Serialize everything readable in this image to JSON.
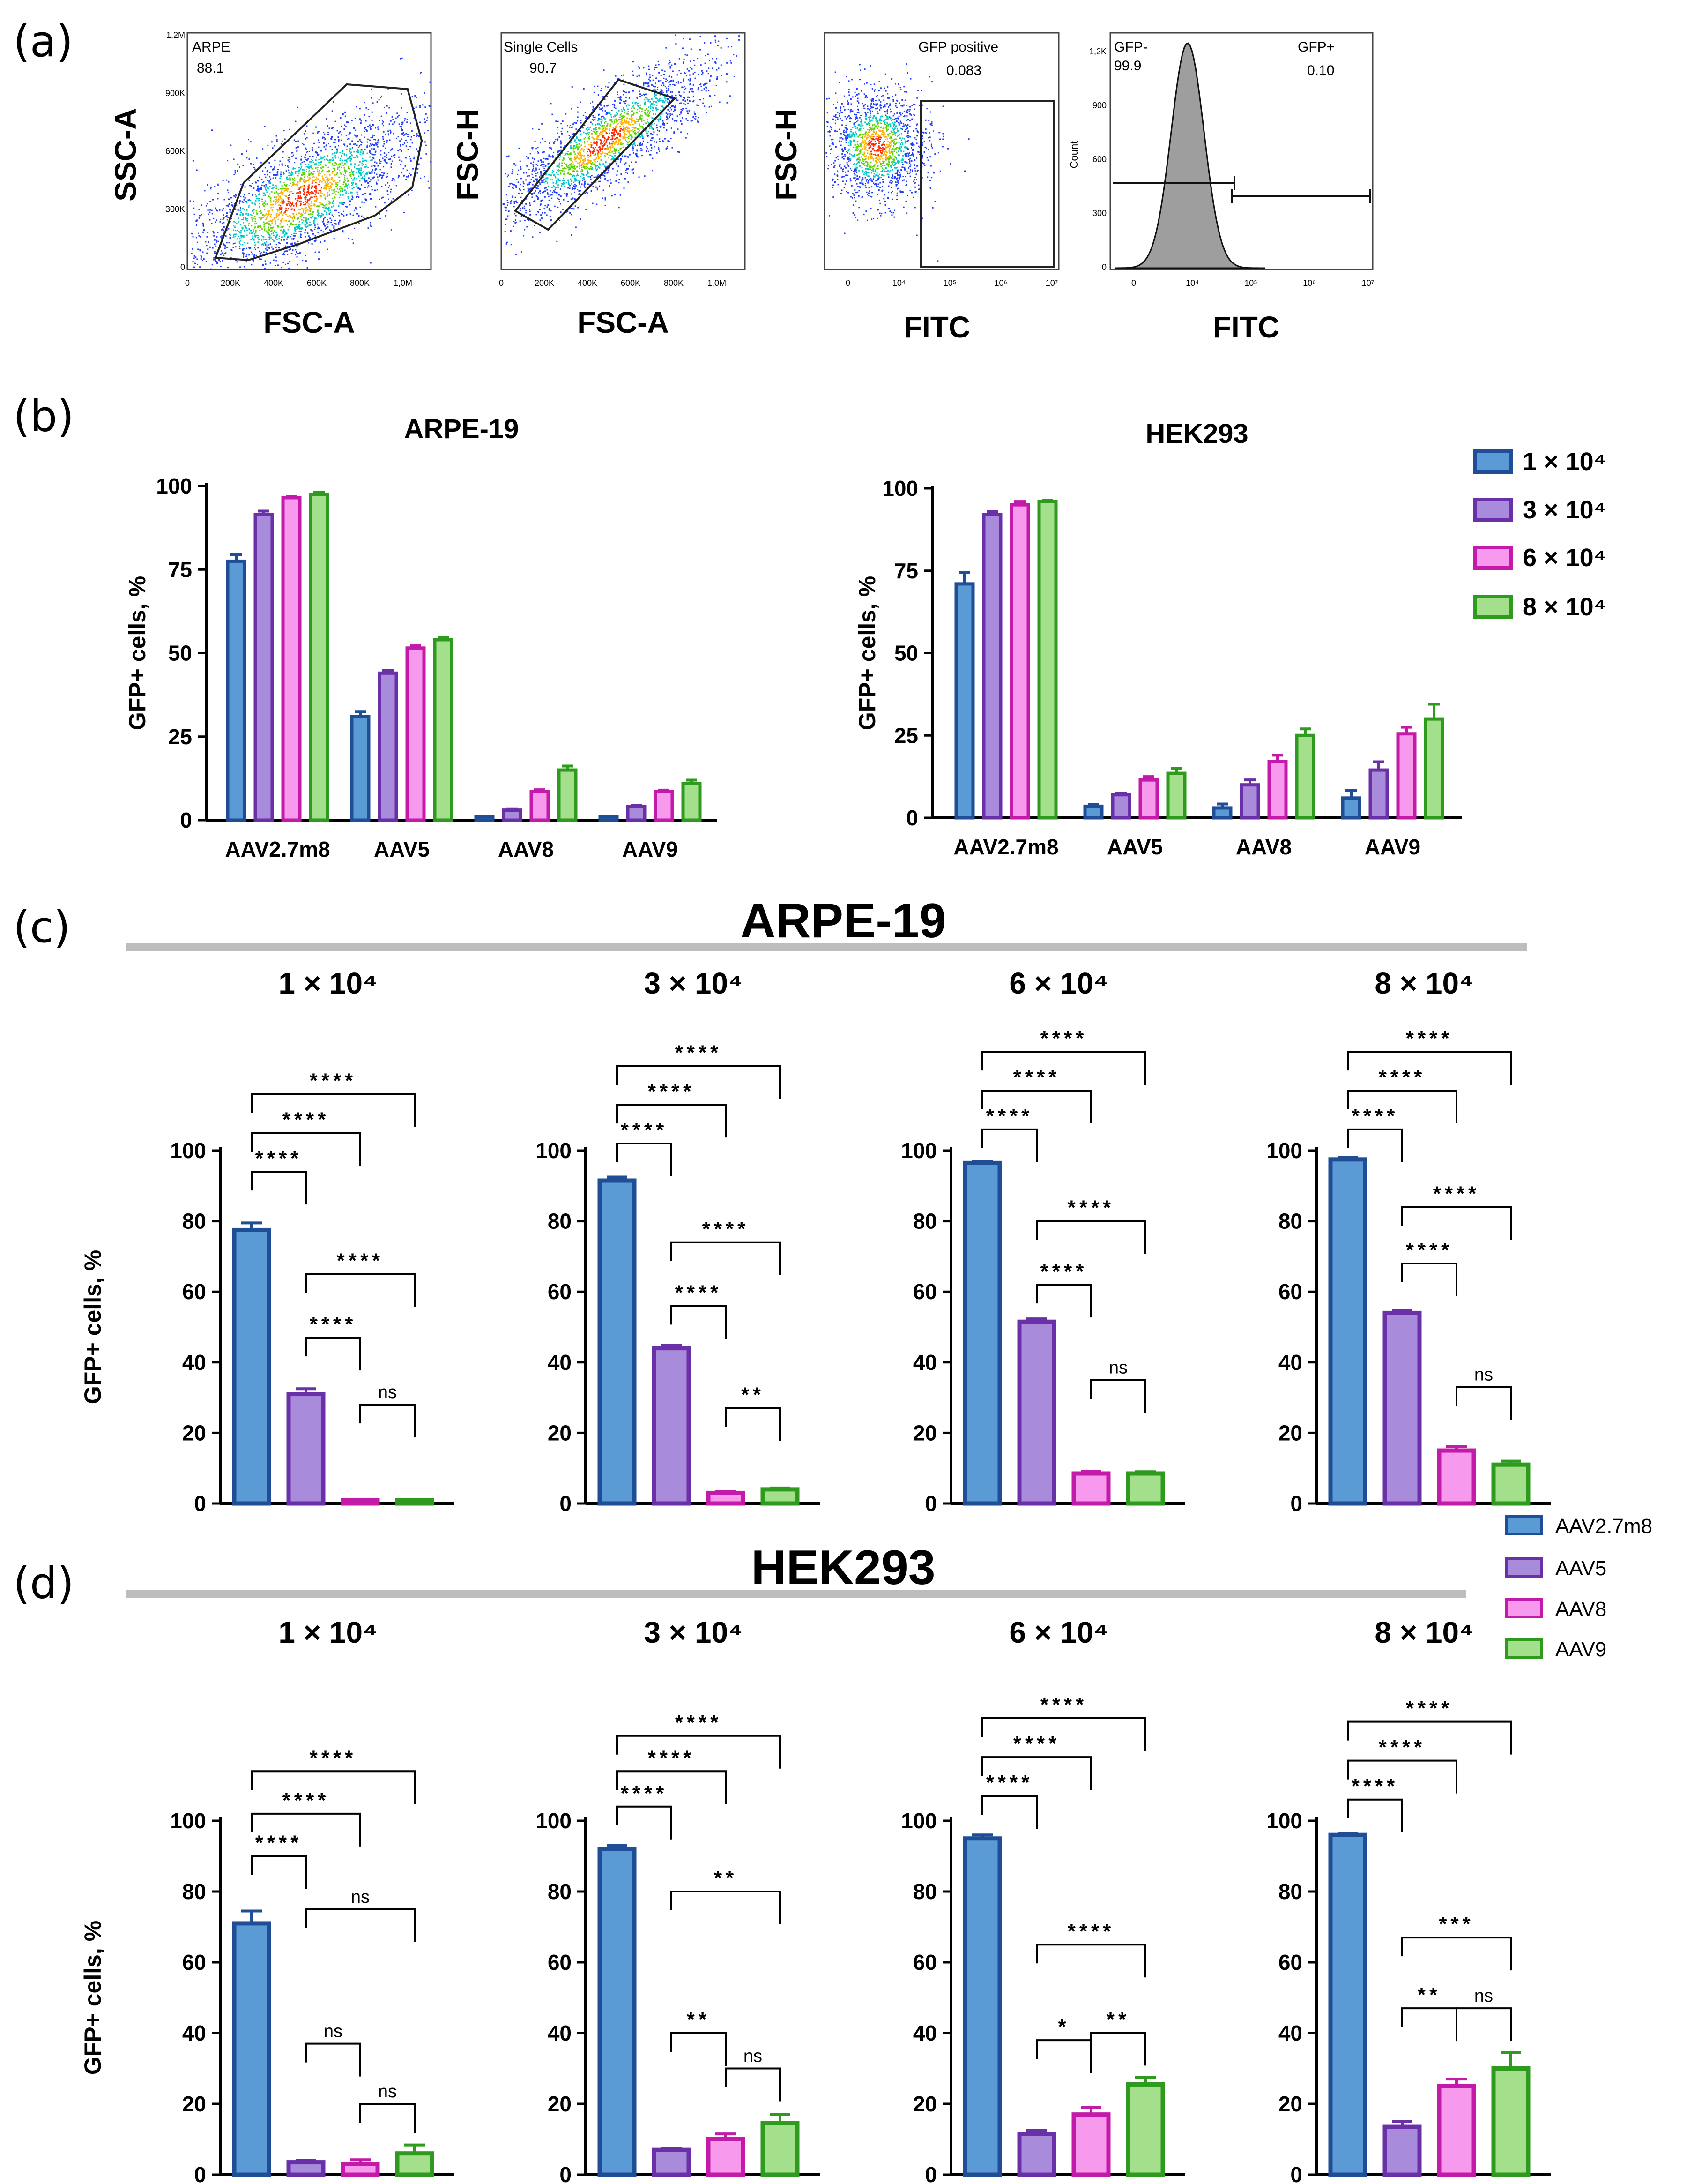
{
  "panels": {
    "a": "(a)",
    "b": "(b)",
    "c": "(c)",
    "d": "(d)"
  },
  "colors": {
    "AAV2.7m8": {
      "fill": "#5b9bd5",
      "stroke": "#1f4e97"
    },
    "AAV5": {
      "fill": "#a98bdb",
      "stroke": "#6a30a8"
    },
    "AAV8": {
      "fill": "#f799ec",
      "stroke": "#c41aaa"
    },
    "AAV9": {
      "fill": "#a4e08c",
      "stroke": "#2e9a1e"
    }
  },
  "flow": {
    "plots": [
      {
        "ylabel": "SSC-A",
        "xlabel": "FSC-A",
        "gate_name": "ARPE",
        "gate_value": "88.1",
        "yticks": [
          "1,2M",
          "900K",
          "600K",
          "300K",
          "0"
        ],
        "xticks": [
          "0",
          "200K",
          "400K",
          "600K",
          "800K",
          "1,0M"
        ]
      },
      {
        "ylabel": "FSC-H",
        "xlabel": "FSC-A",
        "gate_name": "Single Cells",
        "gate_value": "90.7",
        "yticks": [],
        "xticks": [
          "0",
          "200K",
          "400K",
          "600K",
          "800K",
          "1,0M"
        ]
      },
      {
        "ylabel": "FSC-H",
        "xlabel": "FITC",
        "gate_name": "GFP positive",
        "gate_value": "0.083",
        "yticks": [],
        "xticks": [
          "0",
          "10⁴",
          "10⁵",
          "10⁶",
          "10⁷"
        ]
      },
      {
        "ylabel": "Count",
        "xlabel": "FITC",
        "gate_left_name": "GFP-",
        "gate_left_value": "99.9",
        "gate_right_name": "GFP+",
        "gate_right_value": "0.10",
        "yticks": [
          "1,2K",
          "900",
          "600",
          "300",
          "0"
        ],
        "xticks": [
          "0",
          "10⁴",
          "10⁵",
          "10⁶",
          "10⁷"
        ]
      }
    ]
  },
  "legend_b": [
    "1 × 10⁴",
    "3 × 10⁴",
    "6 × 10⁴",
    "8 × 10⁴"
  ],
  "legend_d": [
    "AAV2.7m8",
    "AAV5",
    "AAV8",
    "AAV9"
  ],
  "section_c_title": "ARPE-19",
  "section_d_title": "HEK293",
  "chart_data": [
    {
      "id": "b1",
      "type": "bar",
      "title": "ARPE-19",
      "ylabel": "GFP+ cells, %",
      "xlabel": "",
      "ylim": [
        0,
        100
      ],
      "yticks": [
        0,
        25,
        50,
        75,
        100
      ],
      "categories": [
        "AAV2.7m8",
        "AAV5",
        "AAV8",
        "AAV9"
      ],
      "series": [
        {
          "name": "1 × 10⁴",
          "values": [
            77.5,
            31,
            1,
            1
          ],
          "errors": [
            2,
            1.5,
            0.2,
            0.2
          ]
        },
        {
          "name": "3 × 10⁴",
          "values": [
            91.5,
            44,
            3,
            4
          ],
          "errors": [
            1,
            0.8,
            0.4,
            0.4
          ]
        },
        {
          "name": "6 × 10⁴",
          "values": [
            96.5,
            51.5,
            8.5,
            8.5
          ],
          "errors": [
            0.4,
            0.8,
            0.6,
            0.5
          ]
        },
        {
          "name": "8 × 10⁴",
          "values": [
            97.5,
            54,
            15,
            11
          ],
          "errors": [
            0.6,
            0.8,
            1.2,
            1
          ]
        }
      ]
    },
    {
      "id": "b2",
      "type": "bar",
      "title": "HEK293",
      "ylabel": "GFP+ cells, %",
      "xlabel": "",
      "ylim": [
        0,
        100
      ],
      "yticks": [
        0,
        25,
        50,
        75,
        100
      ],
      "categories": [
        "AAV2.7m8",
        "AAV5",
        "AAV8",
        "AAV9"
      ],
      "series": [
        {
          "name": "1 × 10⁴",
          "values": [
            71,
            3.5,
            3,
            6
          ],
          "errors": [
            3.5,
            0.6,
            1.2,
            2.4
          ]
        },
        {
          "name": "3 × 10⁴",
          "values": [
            92,
            7,
            10,
            14.5
          ],
          "errors": [
            1,
            0.5,
            1.5,
            2.5
          ]
        },
        {
          "name": "6 × 10⁴",
          "values": [
            95,
            11.5,
            17,
            25.5
          ],
          "errors": [
            1,
            1,
            2,
            2
          ]
        },
        {
          "name": "8 × 10⁴",
          "values": [
            96,
            13.5,
            25,
            30
          ],
          "errors": [
            0.4,
            1.5,
            2,
            4.5
          ]
        }
      ]
    },
    {
      "id": "c1",
      "type": "bar",
      "title": "1 × 10⁴",
      "ylabel": "GFP+ cells, %",
      "ylim": [
        0,
        100
      ],
      "yticks": [
        0,
        20,
        40,
        60,
        80,
        100
      ],
      "categories": [
        "AAV2.7m8",
        "AAV5",
        "AAV8",
        "AAV9"
      ],
      "values": [
        77.5,
        31,
        1,
        1
      ],
      "errors": [
        2,
        1.5,
        0.2,
        0.2
      ],
      "comparisons": [
        {
          "a": 0,
          "b": 1,
          "label": "****",
          "y": 94
        },
        {
          "a": 0,
          "b": 2,
          "label": "****",
          "y": 105
        },
        {
          "a": 0,
          "b": 3,
          "label": "****",
          "y": 116
        },
        {
          "a": 1,
          "b": 2,
          "label": "****",
          "y": 47
        },
        {
          "a": 1,
          "b": 3,
          "label": "****",
          "y": 65
        },
        {
          "a": 2,
          "b": 3,
          "label": "ns",
          "y": 28
        }
      ]
    },
    {
      "id": "c2",
      "type": "bar",
      "title": "3 × 10⁴",
      "ylabel": "",
      "ylim": [
        0,
        100
      ],
      "yticks": [
        0,
        20,
        40,
        60,
        80,
        100
      ],
      "categories": [
        "AAV2.7m8",
        "AAV5",
        "AAV8",
        "AAV9"
      ],
      "values": [
        91.5,
        44,
        3,
        4
      ],
      "errors": [
        1,
        0.8,
        0.4,
        0.4
      ],
      "comparisons": [
        {
          "a": 0,
          "b": 1,
          "label": "****",
          "y": 102
        },
        {
          "a": 0,
          "b": 2,
          "label": "****",
          "y": 113
        },
        {
          "a": 0,
          "b": 3,
          "label": "****",
          "y": 124
        },
        {
          "a": 1,
          "b": 2,
          "label": "****",
          "y": 56
        },
        {
          "a": 1,
          "b": 3,
          "label": "****",
          "y": 74
        },
        {
          "a": 2,
          "b": 3,
          "label": "**",
          "y": 27
        }
      ]
    },
    {
      "id": "c3",
      "type": "bar",
      "title": "6 × 10⁴",
      "ylabel": "",
      "ylim": [
        0,
        100
      ],
      "yticks": [
        0,
        20,
        40,
        60,
        80,
        100
      ],
      "categories": [
        "AAV2.7m8",
        "AAV5",
        "AAV8",
        "AAV9"
      ],
      "values": [
        96.5,
        51.5,
        8.5,
        8.5
      ],
      "errors": [
        0.4,
        0.8,
        0.6,
        0.5
      ],
      "comparisons": [
        {
          "a": 0,
          "b": 1,
          "label": "****",
          "y": 106
        },
        {
          "a": 0,
          "b": 2,
          "label": "****",
          "y": 117
        },
        {
          "a": 0,
          "b": 3,
          "label": "****",
          "y": 128
        },
        {
          "a": 1,
          "b": 2,
          "label": "****",
          "y": 62
        },
        {
          "a": 1,
          "b": 3,
          "label": "****",
          "y": 80
        },
        {
          "a": 2,
          "b": 3,
          "label": "ns",
          "y": 35
        }
      ]
    },
    {
      "id": "c4",
      "type": "bar",
      "title": "8 × 10⁴",
      "ylabel": "",
      "ylim": [
        0,
        100
      ],
      "yticks": [
        0,
        20,
        40,
        60,
        80,
        100
      ],
      "categories": [
        "AAV2.7m8",
        "AAV5",
        "AAV8",
        "AAV9"
      ],
      "values": [
        97.5,
        54,
        15,
        11
      ],
      "errors": [
        0.6,
        0.8,
        1.2,
        1
      ],
      "comparisons": [
        {
          "a": 0,
          "b": 1,
          "label": "****",
          "y": 106
        },
        {
          "a": 0,
          "b": 2,
          "label": "****",
          "y": 117
        },
        {
          "a": 0,
          "b": 3,
          "label": "****",
          "y": 128
        },
        {
          "a": 1,
          "b": 2,
          "label": "****",
          "y": 68
        },
        {
          "a": 1,
          "b": 3,
          "label": "****",
          "y": 84
        },
        {
          "a": 2,
          "b": 3,
          "label": "ns",
          "y": 33
        }
      ]
    },
    {
      "id": "d1",
      "type": "bar",
      "title": "1 × 10⁴",
      "ylabel": "GFP+ cells, %",
      "ylim": [
        0,
        100
      ],
      "yticks": [
        0,
        20,
        40,
        60,
        80,
        100
      ],
      "categories": [
        "AAV2.7m8",
        "AAV5",
        "AAV8",
        "AAV9"
      ],
      "values": [
        71,
        3.5,
        3,
        6
      ],
      "errors": [
        3.5,
        0.6,
        1.2,
        2.4
      ],
      "comparisons": [
        {
          "a": 0,
          "b": 1,
          "label": "****",
          "y": 90
        },
        {
          "a": 0,
          "b": 2,
          "label": "****",
          "y": 102
        },
        {
          "a": 0,
          "b": 3,
          "label": "****",
          "y": 114
        },
        {
          "a": 1,
          "b": 2,
          "label": "ns",
          "y": 37
        },
        {
          "a": 1,
          "b": 3,
          "label": "ns",
          "y": 75
        },
        {
          "a": 2,
          "b": 3,
          "label": "ns",
          "y": 20
        }
      ]
    },
    {
      "id": "d2",
      "type": "bar",
      "title": "3 × 10⁴",
      "ylabel": "",
      "ylim": [
        0,
        100
      ],
      "yticks": [
        0,
        20,
        40,
        60,
        80,
        100
      ],
      "categories": [
        "AAV2.7m8",
        "AAV5",
        "AAV8",
        "AAV9"
      ],
      "values": [
        92,
        7,
        10,
        14.5
      ],
      "errors": [
        1,
        0.5,
        1.5,
        2.5
      ],
      "comparisons": [
        {
          "a": 0,
          "b": 1,
          "label": "****",
          "y": 104
        },
        {
          "a": 0,
          "b": 2,
          "label": "****",
          "y": 114
        },
        {
          "a": 0,
          "b": 3,
          "label": "****",
          "y": 124
        },
        {
          "a": 1,
          "b": 2,
          "label": "**",
          "y": 40
        },
        {
          "a": 1,
          "b": 3,
          "label": "**",
          "y": 80
        },
        {
          "a": 2,
          "b": 3,
          "label": "ns",
          "y": 30
        }
      ]
    },
    {
      "id": "d3",
      "type": "bar",
      "title": "6 × 10⁴",
      "ylabel": "",
      "ylim": [
        0,
        100
      ],
      "yticks": [
        0,
        20,
        40,
        60,
        80,
        100
      ],
      "categories": [
        "AAV2.7m8",
        "AAV5",
        "AAV8",
        "AAV9"
      ],
      "values": [
        95,
        11.5,
        17,
        25.5
      ],
      "errors": [
        1,
        1,
        2,
        2
      ],
      "comparisons": [
        {
          "a": 0,
          "b": 1,
          "label": "****",
          "y": 107
        },
        {
          "a": 0,
          "b": 2,
          "label": "****",
          "y": 118
        },
        {
          "a": 0,
          "b": 3,
          "label": "****",
          "y": 129
        },
        {
          "a": 1,
          "b": 2,
          "label": "*",
          "y": 38
        },
        {
          "a": 1,
          "b": 3,
          "label": "****",
          "y": 65
        },
        {
          "a": 2,
          "b": 3,
          "label": "**",
          "y": 40
        }
      ]
    },
    {
      "id": "d4",
      "type": "bar",
      "title": "8 × 10⁴",
      "ylabel": "",
      "ylim": [
        0,
        100
      ],
      "yticks": [
        0,
        20,
        40,
        60,
        80,
        100
      ],
      "categories": [
        "AAV2.7m8",
        "AAV5",
        "AAV8",
        "AAV9"
      ],
      "values": [
        96,
        13.5,
        25,
        30
      ],
      "errors": [
        0.4,
        1.5,
        2,
        4.5
      ],
      "comparisons": [
        {
          "a": 0,
          "b": 1,
          "label": "****",
          "y": 106
        },
        {
          "a": 0,
          "b": 2,
          "label": "****",
          "y": 117
        },
        {
          "a": 0,
          "b": 3,
          "label": "****",
          "y": 128
        },
        {
          "a": 1,
          "b": 2,
          "label": "**",
          "y": 47
        },
        {
          "a": 1,
          "b": 3,
          "label": "***",
          "y": 67
        },
        {
          "a": 2,
          "b": 3,
          "label": "ns",
          "y": 47
        }
      ]
    }
  ]
}
